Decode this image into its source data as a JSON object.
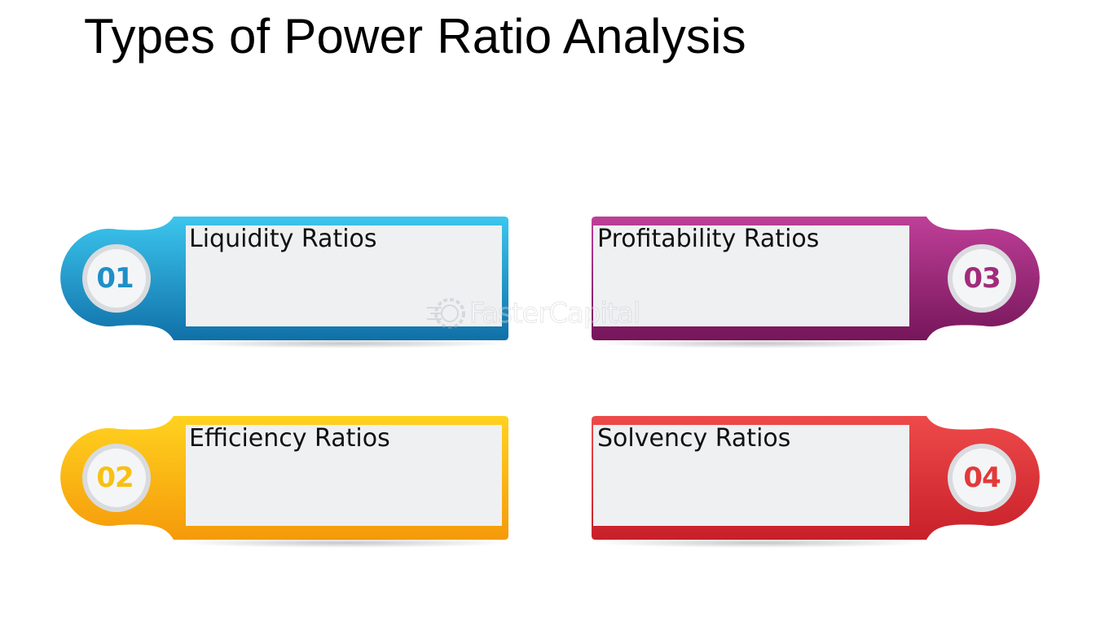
{
  "title": "Types of Power Ratio Analysis",
  "watermark": "FasterCapital",
  "items": [
    {
      "number": "01",
      "label": "Liquidity Ratios",
      "color": "#1f9fd2",
      "color_light": "#3cc6ee",
      "color_dark": "#1070a8"
    },
    {
      "number": "02",
      "label": "Efficiency Ratios",
      "color": "#f8b20e",
      "color_light": "#ffd21f",
      "color_dark": "#f59a0a"
    },
    {
      "number": "03",
      "label": "Profitability Ratios",
      "color": "#a12c7b",
      "color_light": "#bf3f98",
      "color_dark": "#76165a"
    },
    {
      "number": "04",
      "label": "Solvency Ratios",
      "color": "#e23a3a",
      "color_light": "#ee4a4a",
      "color_dark": "#c8202a"
    }
  ]
}
